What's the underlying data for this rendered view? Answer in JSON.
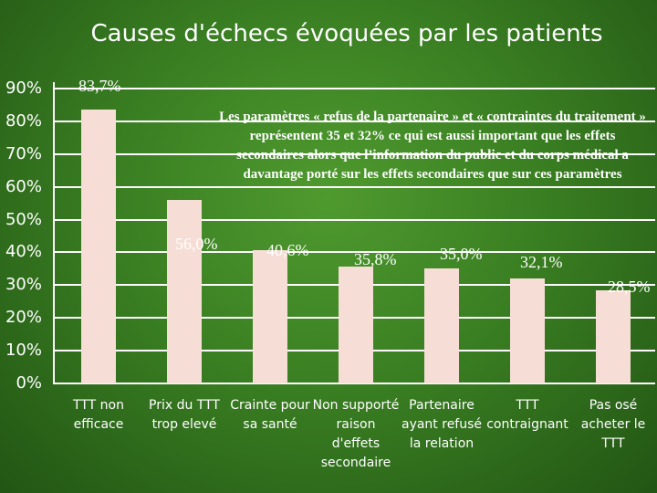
{
  "chart_data": {
    "type": "bar",
    "title": "Causes d'échecs évoquées par les patients",
    "xlabel": "",
    "ylabel": "",
    "ylim": [
      0,
      90
    ],
    "yticks": [
      "0%",
      "10%",
      "20%",
      "30%",
      "40%",
      "50%",
      "60%",
      "70%",
      "80%",
      "90%"
    ],
    "categories": [
      "TTT non\nefficace",
      "Prix du TTT\ntrop elevé",
      "Crainte pour\nsa santé",
      "Non supporté\nraison\nd'effets\nsecondaire",
      "Partenaire\nayant refusé\nla relation",
      "TTT\ncontraignant",
      "Pas osé\nacheter le\nTTT"
    ],
    "values": [
      83.7,
      56.0,
      40.6,
      35.8,
      35.0,
      32.1,
      28.5
    ],
    "data_labels": [
      "83,7%",
      "56,0%",
      "40,6%",
      "35,8%",
      "35,0%",
      "32,1%",
      "28,5%"
    ],
    "annotation": "Les paramètres « refus de la partenaire » et « contraintes du traitement » représentent 35 et 32% ce qui est aussi important que les effets secondaires alors que l’information du public et du corps médical a davantage porté sur les effets secondaires que sur ces paramètres",
    "grid": true,
    "legend": "none",
    "colors": {
      "bar": "#f6ded6",
      "background": "#3a7f22",
      "text": "#ffffff"
    }
  }
}
